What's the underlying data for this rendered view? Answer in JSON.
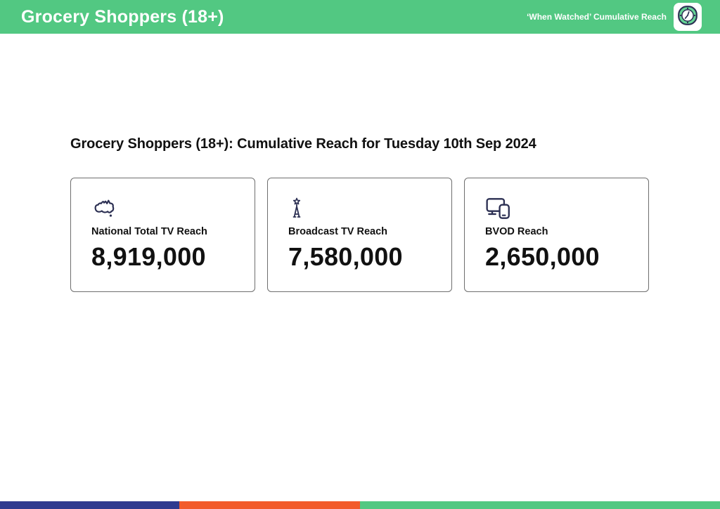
{
  "header": {
    "title": "Grocery Shoppers (18+)",
    "tagline": "‘When Watched’ Cumulative Reach",
    "logo_icon": "clock-icon"
  },
  "content": {
    "heading": "Grocery Shoppers (18+): Cumulative Reach for Tuesday 10th Sep 2024",
    "cards": [
      {
        "icon": "australia-map-icon",
        "label": "National Total TV Reach",
        "value": "8,919,000"
      },
      {
        "icon": "broadcast-tower-icon",
        "label": "Broadcast TV Reach",
        "value": "7,580,000"
      },
      {
        "icon": "tv-and-mobile-devices-icon",
        "label": "BVOD Reach",
        "value": "2,650,000"
      }
    ]
  },
  "footer": {
    "segments": [
      {
        "name": "navy",
        "color": "#2f3a8f",
        "width_pct": 24.9
      },
      {
        "name": "orange",
        "color": "#f25b2b",
        "width_pct": 25.1
      },
      {
        "name": "green",
        "color": "#52c882",
        "width_pct": 50.0
      }
    ]
  },
  "colors": {
    "header_bg": "#52c882",
    "icon_navy": "#2b2f52",
    "text": "#111111",
    "card_border": "#6e6e6e"
  }
}
